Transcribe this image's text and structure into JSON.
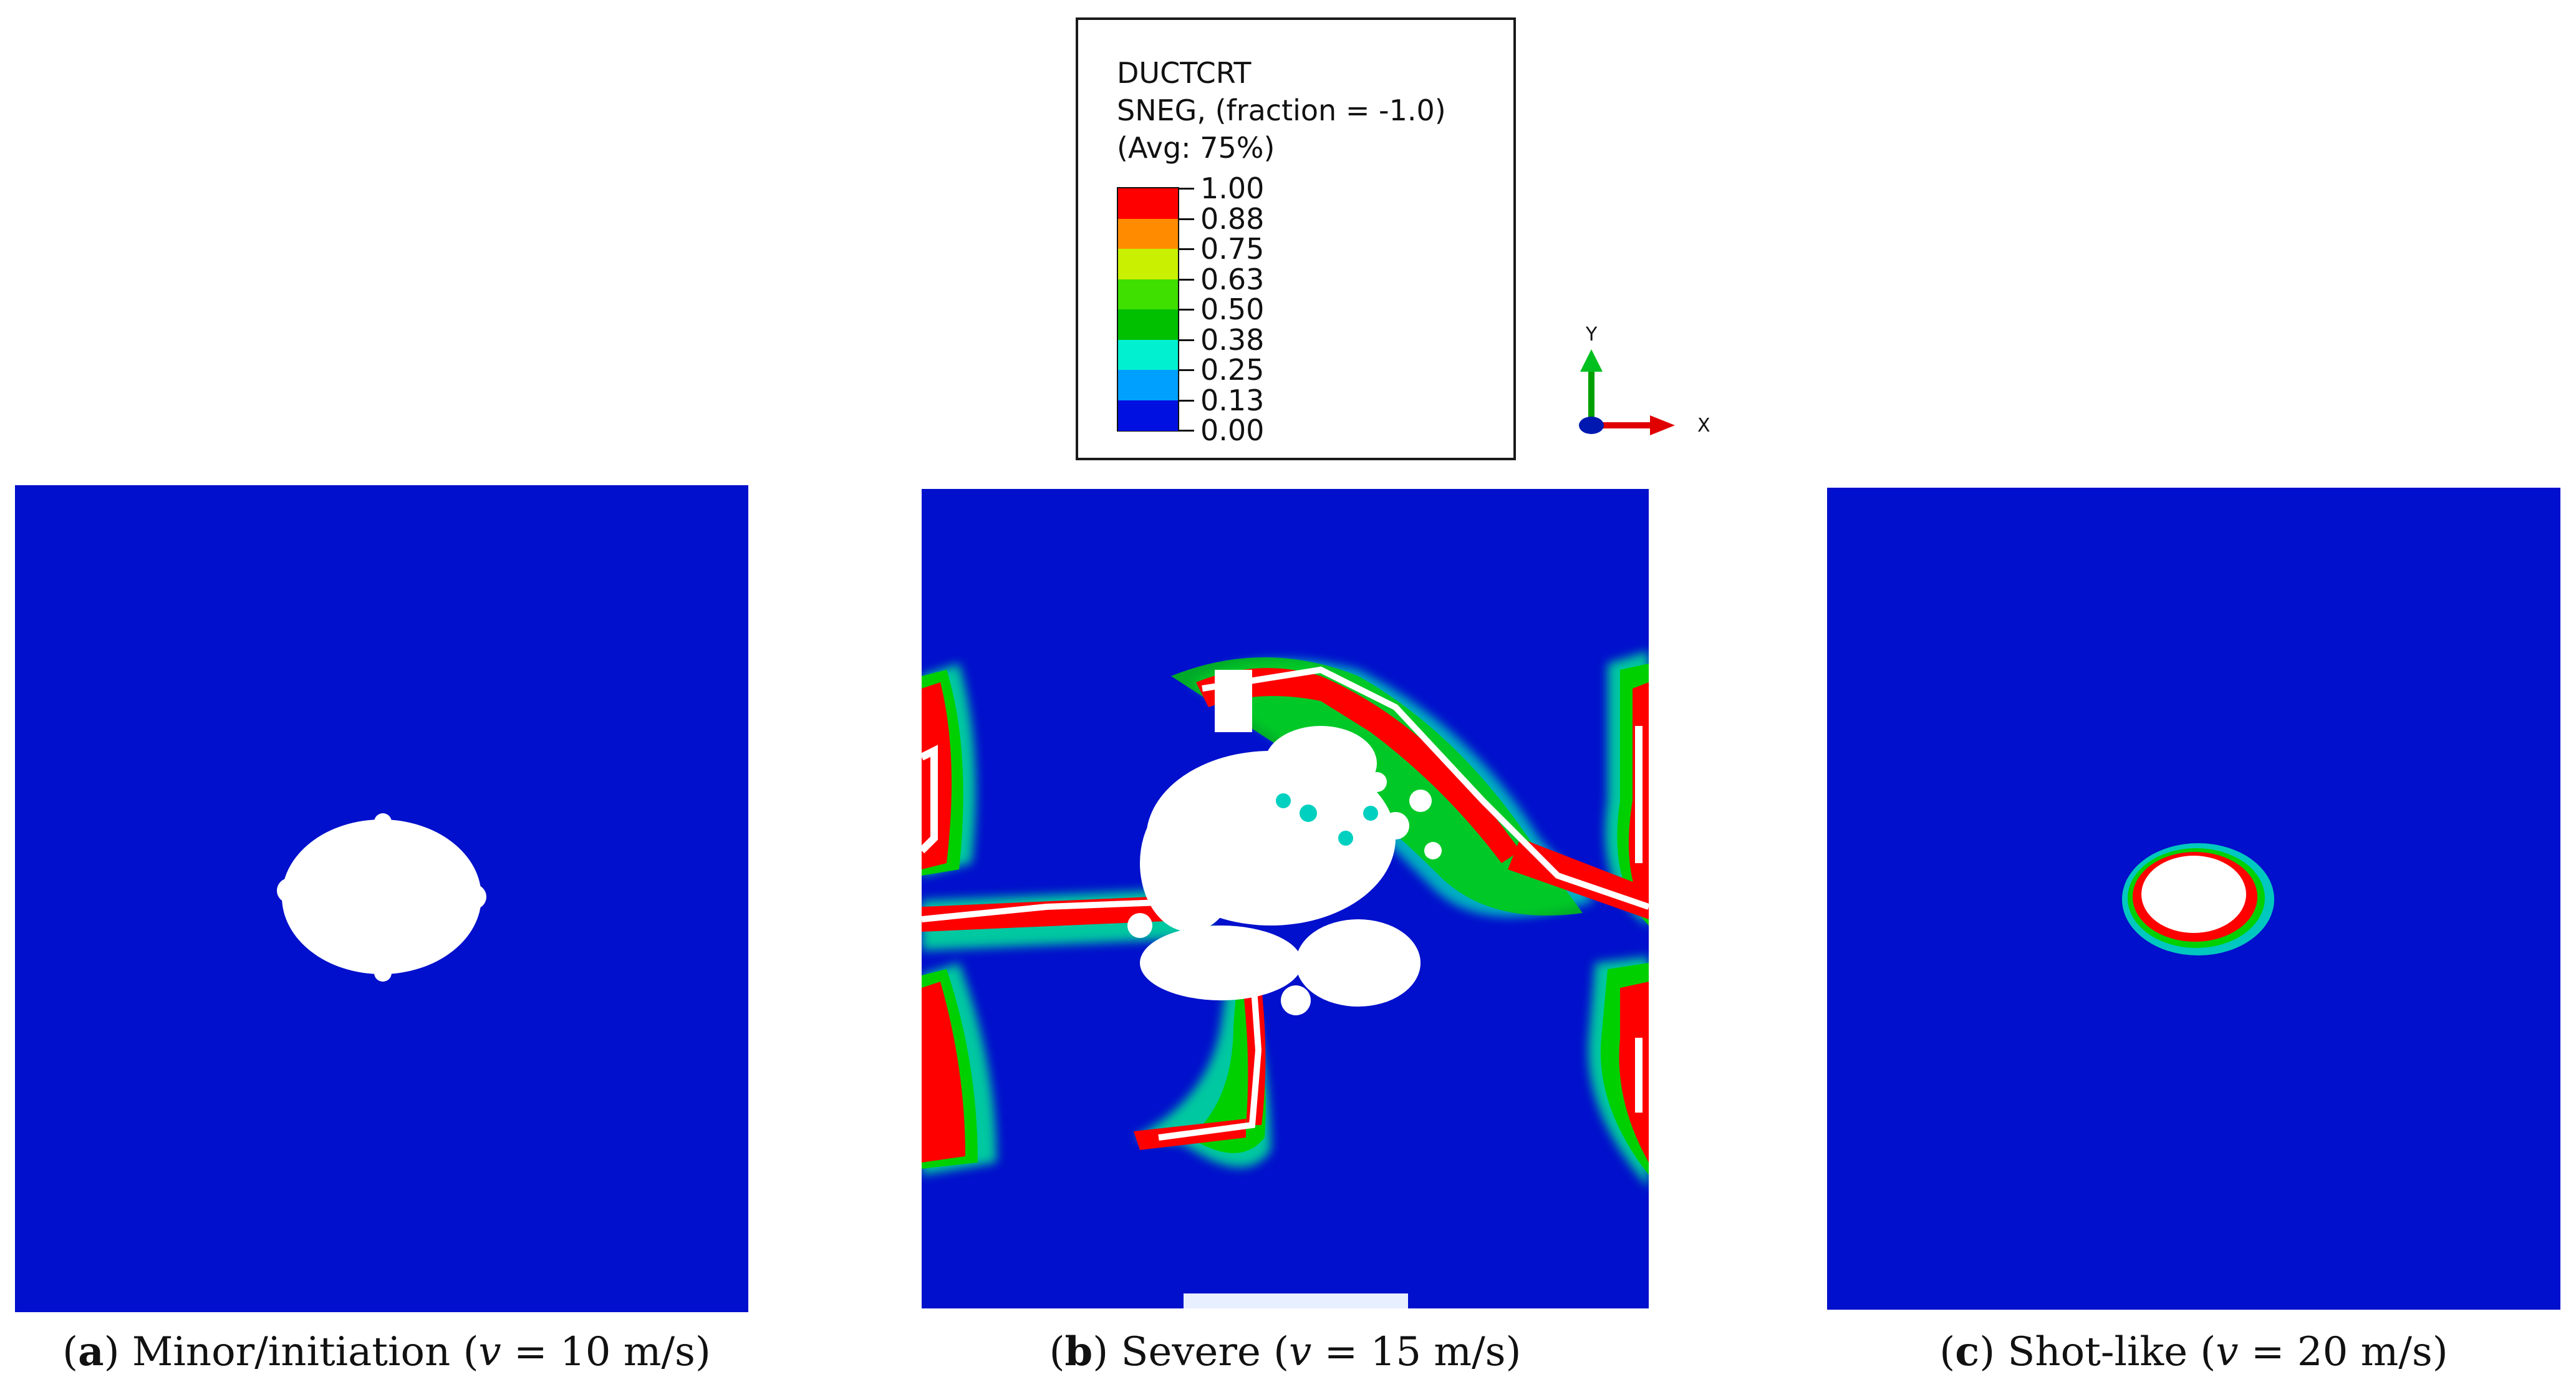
{
  "legend": {
    "title_lines": [
      "DUCTCRT",
      "SNEG, (fraction = -1.0)",
      "(Avg: 75%)"
    ],
    "ticks": [
      "1.00",
      "0.88",
      "0.75",
      "0.63",
      "0.50",
      "0.38",
      "0.25",
      "0.13",
      "0.00"
    ],
    "band_colors": [
      "#ff0000",
      "#ff8c00",
      "#c8f000",
      "#3fe000",
      "#00c000",
      "#00f0d0",
      "#00a0ff",
      "#0010e0"
    ]
  },
  "axes_triad": {
    "y_label": "Y",
    "x_label": "X"
  },
  "panels": [
    {
      "letter": "a",
      "label": "Minor/initiation",
      "velocity_symbol": "v",
      "velocity_text": "= 10 m/s"
    },
    {
      "letter": "b",
      "label": "Severe",
      "velocity_symbol": "v",
      "velocity_text": "= 15 m/s"
    },
    {
      "letter": "c",
      "label": "Shot-like",
      "velocity_symbol": "v",
      "velocity_text": "= 20 m/s"
    }
  ],
  "colors": {
    "background_field": "#0010cc"
  }
}
